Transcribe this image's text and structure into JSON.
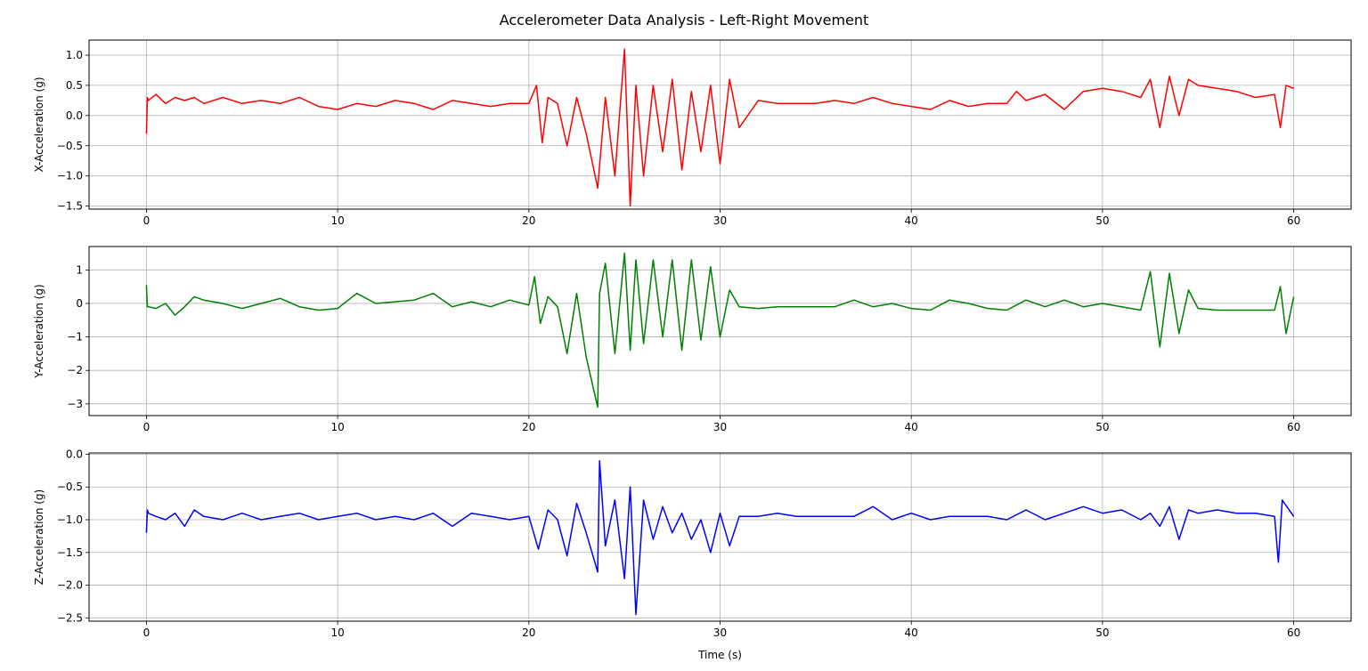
{
  "figure": {
    "title": "Accelerometer Data Analysis - Left-Right Movement"
  },
  "chart_data": [
    {
      "type": "line",
      "color": "#ff0000",
      "ylabel": "X-Acceleration (g)",
      "xlabel": "",
      "xlim": [
        -3,
        63
      ],
      "ylim": [
        -1.55,
        1.25
      ],
      "xticks": [
        0,
        10,
        20,
        30,
        40,
        50,
        60
      ],
      "yticks": [
        -1.5,
        -1.0,
        -0.5,
        0.0,
        0.5,
        1.0
      ],
      "ytick_labels": [
        "−1.5",
        "−1.0",
        "−0.5",
        "0.0",
        "0.5",
        "1.0"
      ],
      "grid": true,
      "series": [
        {
          "x": [
            0,
            0.05,
            0.1,
            0.5,
            1,
            1.5,
            2,
            2.5,
            3,
            4,
            5,
            6,
            7,
            8,
            9,
            10,
            11,
            12,
            13,
            14,
            15,
            16,
            17,
            18,
            19,
            20,
            20.4,
            20.7,
            21,
            21.5,
            22,
            22.5,
            23,
            23.6,
            24,
            24.5,
            25,
            25.3,
            25.6,
            26,
            26.5,
            27,
            27.5,
            28,
            28.5,
            29,
            29.5,
            30,
            30.5,
            31,
            32,
            33,
            34,
            35,
            36,
            37,
            38,
            39,
            40,
            41,
            42,
            43,
            44,
            45,
            45.5,
            46,
            47,
            48,
            49,
            50,
            51,
            52,
            52.5,
            53,
            53.5,
            54,
            54.5,
            55,
            56,
            57,
            58,
            59,
            59.3,
            59.6,
            60
          ],
          "values": [
            -0.3,
            0.3,
            0.25,
            0.35,
            0.2,
            0.3,
            0.25,
            0.3,
            0.2,
            0.3,
            0.2,
            0.25,
            0.2,
            0.3,
            0.15,
            0.1,
            0.2,
            0.15,
            0.25,
            0.2,
            0.1,
            0.25,
            0.2,
            0.15,
            0.2,
            0.2,
            0.5,
            -0.45,
            0.3,
            0.2,
            -0.5,
            0.3,
            -0.3,
            -1.2,
            0.3,
            -1.0,
            1.1,
            -1.5,
            0.5,
            -1.0,
            0.5,
            -0.6,
            0.6,
            -0.9,
            0.4,
            -0.6,
            0.5,
            -0.8,
            0.6,
            -0.2,
            0.25,
            0.2,
            0.2,
            0.2,
            0.25,
            0.2,
            0.3,
            0.2,
            0.15,
            0.1,
            0.25,
            0.15,
            0.2,
            0.2,
            0.4,
            0.25,
            0.35,
            0.1,
            0.4,
            0.45,
            0.4,
            0.3,
            0.6,
            -0.2,
            0.65,
            0.0,
            0.6,
            0.5,
            0.45,
            0.4,
            0.3,
            0.35,
            -0.2,
            0.5,
            0.45
          ]
        }
      ]
    },
    {
      "type": "line",
      "color": "#008000",
      "ylabel": "Y-Acceleration (g)",
      "xlabel": "",
      "xlim": [
        -3,
        63
      ],
      "ylim": [
        -3.35,
        1.7
      ],
      "xticks": [
        0,
        10,
        20,
        30,
        40,
        50,
        60
      ],
      "yticks": [
        -3,
        -2,
        -1,
        0,
        1
      ],
      "ytick_labels": [
        "−3",
        "−2",
        "−1",
        "0",
        "1"
      ],
      "grid": true,
      "series": [
        {
          "x": [
            0,
            0.05,
            0.1,
            0.5,
            1,
            1.5,
            2,
            2.5,
            3,
            4,
            5,
            6,
            7,
            8,
            9,
            10,
            11,
            12,
            13,
            14,
            15,
            16,
            17,
            18,
            19,
            20,
            20.3,
            20.6,
            21,
            21.5,
            22,
            22.5,
            23,
            23.6,
            23.7,
            24,
            24.5,
            25,
            25.3,
            25.6,
            26,
            26.5,
            27,
            27.5,
            28,
            28.5,
            29,
            29.5,
            30,
            30.5,
            31,
            32,
            33,
            34,
            35,
            36,
            37,
            38,
            39,
            40,
            41,
            42,
            43,
            44,
            45,
            46,
            47,
            48,
            49,
            50,
            51,
            52,
            52.5,
            53,
            53.5,
            54,
            54.5,
            55,
            56,
            57,
            58,
            59,
            59.3,
            59.6,
            60
          ],
          "values": [
            0.55,
            -0.1,
            -0.1,
            -0.15,
            0.0,
            -0.35,
            -0.1,
            0.2,
            0.1,
            0.0,
            -0.15,
            0.0,
            0.15,
            -0.1,
            -0.2,
            -0.15,
            0.3,
            0.0,
            0.05,
            0.1,
            0.3,
            -0.1,
            0.05,
            -0.1,
            0.1,
            -0.05,
            0.8,
            -0.6,
            0.2,
            -0.1,
            -1.5,
            0.3,
            -1.6,
            -3.1,
            0.3,
            1.2,
            -1.5,
            1.5,
            -1.4,
            1.3,
            -1.2,
            1.3,
            -1.0,
            1.3,
            -1.4,
            1.3,
            -1.1,
            1.1,
            -1.0,
            0.4,
            -0.1,
            -0.15,
            -0.1,
            -0.1,
            -0.1,
            -0.1,
            0.1,
            -0.1,
            0.0,
            -0.15,
            -0.2,
            0.1,
            0.0,
            -0.15,
            -0.2,
            0.1,
            -0.1,
            0.1,
            -0.1,
            0.0,
            -0.1,
            -0.2,
            0.95,
            -1.3,
            0.9,
            -0.9,
            0.4,
            -0.15,
            -0.2,
            -0.2,
            -0.2,
            -0.2,
            0.5,
            -0.9,
            0.2
          ]
        }
      ]
    },
    {
      "type": "line",
      "color": "#0000ff",
      "ylabel": "Z-Acceleration (g)",
      "xlabel": "Time (s)",
      "xlim": [
        -3,
        63
      ],
      "ylim": [
        -2.55,
        0.02
      ],
      "xticks": [
        0,
        10,
        20,
        30,
        40,
        50,
        60
      ],
      "yticks": [
        -2.5,
        -2.0,
        -1.5,
        -1.0,
        -0.5,
        0.0
      ],
      "ytick_labels": [
        "−2.5",
        "−2.0",
        "−1.5",
        "−1.0",
        "−0.5",
        "0.0"
      ],
      "grid": true,
      "series": [
        {
          "x": [
            0,
            0.05,
            0.1,
            0.5,
            1,
            1.5,
            2,
            2.5,
            3,
            4,
            5,
            6,
            7,
            8,
            9,
            10,
            11,
            12,
            13,
            14,
            15,
            16,
            17,
            18,
            19,
            20,
            20.5,
            21,
            21.5,
            22,
            22.5,
            23,
            23.6,
            23.7,
            24,
            24.5,
            25,
            25.3,
            25.6,
            26,
            26.5,
            27,
            27.5,
            28,
            28.5,
            29,
            29.5,
            30,
            30.5,
            31,
            32,
            33,
            34,
            35,
            36,
            37,
            38,
            39,
            40,
            41,
            42,
            43,
            44,
            45,
            46,
            47,
            48,
            49,
            50,
            51,
            52,
            52.5,
            53,
            53.5,
            54,
            54.5,
            55,
            56,
            57,
            58,
            59,
            59.2,
            59.4,
            60
          ],
          "values": [
            -1.2,
            -0.85,
            -0.9,
            -0.95,
            -1.0,
            -0.9,
            -1.1,
            -0.85,
            -0.95,
            -1.0,
            -0.9,
            -1.0,
            -0.95,
            -0.9,
            -1.0,
            -0.95,
            -0.9,
            -1.0,
            -0.95,
            -1.0,
            -0.9,
            -1.1,
            -0.9,
            -0.95,
            -1.0,
            -0.95,
            -1.45,
            -0.85,
            -1.0,
            -1.55,
            -0.75,
            -1.2,
            -1.8,
            -0.1,
            -1.4,
            -0.7,
            -1.9,
            -0.5,
            -2.45,
            -0.7,
            -1.3,
            -0.8,
            -1.2,
            -0.9,
            -1.3,
            -1.0,
            -1.5,
            -0.9,
            -1.4,
            -0.95,
            -0.95,
            -0.9,
            -0.95,
            -0.95,
            -0.95,
            -0.95,
            -0.8,
            -1.0,
            -0.9,
            -1.0,
            -0.95,
            -0.95,
            -0.95,
            -1.0,
            -0.85,
            -1.0,
            -0.9,
            -0.8,
            -0.9,
            -0.85,
            -1.0,
            -0.9,
            -1.1,
            -0.8,
            -1.3,
            -0.85,
            -0.9,
            -0.85,
            -0.9,
            -0.9,
            -0.95,
            -1.65,
            -0.7,
            -0.95
          ]
        }
      ]
    }
  ]
}
